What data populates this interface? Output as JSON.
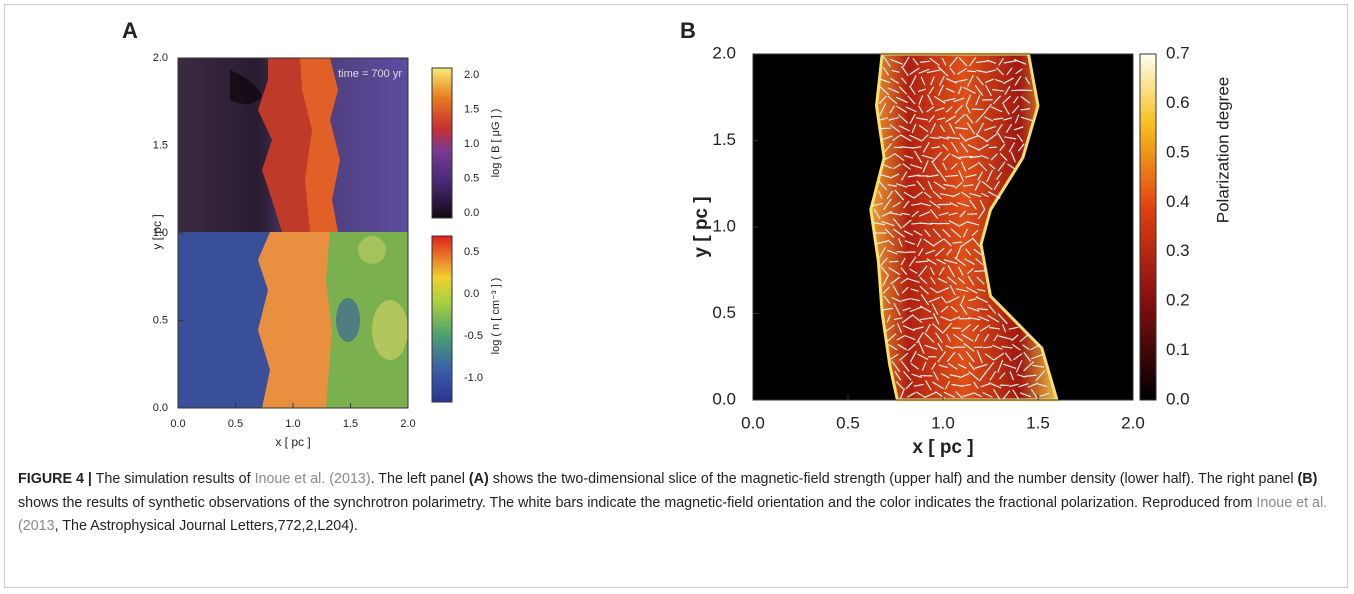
{
  "panels": [
    {
      "label": "A",
      "annotation": "time = 700 yr",
      "x_label": "x [ pc ]",
      "y_label": "y [ pc ]",
      "x_ticks": [
        "0.0",
        "0.5",
        "1.0",
        "1.5",
        "2.0"
      ],
      "y_ticks": [
        "0.0",
        "0.5",
        "1.0",
        "1.5",
        "2.0"
      ],
      "colorbars": [
        {
          "label": "log ( B [ μG ] )",
          "ticks": [
            "0.0",
            "0.5",
            "1.0",
            "1.5",
            "2.0"
          ]
        },
        {
          "label": "log ( n [ cm⁻³ ] )",
          "ticks": [
            "-1.0",
            "-0.5",
            "0.0",
            "0.5"
          ]
        }
      ]
    },
    {
      "label": "B",
      "x_label": "x [ pc ]",
      "y_label": "y [ pc ]",
      "x_ticks": [
        "0.0",
        "0.5",
        "1.0",
        "1.5",
        "2.0"
      ],
      "y_ticks": [
        "0.0",
        "0.5",
        "1.0",
        "1.5",
        "2.0"
      ],
      "colorbars": [
        {
          "label": "Polarization degree",
          "ticks": [
            "0.0",
            "0.1",
            "0.2",
            "0.3",
            "0.4",
            "0.5",
            "0.6",
            "0.7"
          ]
        }
      ]
    }
  ],
  "caption": [
    "FIGURE 4 |",
    " The simulation results of ",
    "Inoue et al. (2013)",
    ". The left panel ",
    "(A)",
    " shows the two-dimensional slice of the magnetic-field strength (upper half) and the number density (lower half). The right panel ",
    "(B)",
    " shows the results of synthetic observations of the synchrotron polarimetry. The white bars indicate the magnetic-field orientation and the color indicates the fractional polarization. Reproduced from ",
    "Inoue et al. (2013",
    ", The Astrophysical Journal Letters,772,2,L204)."
  ]
}
